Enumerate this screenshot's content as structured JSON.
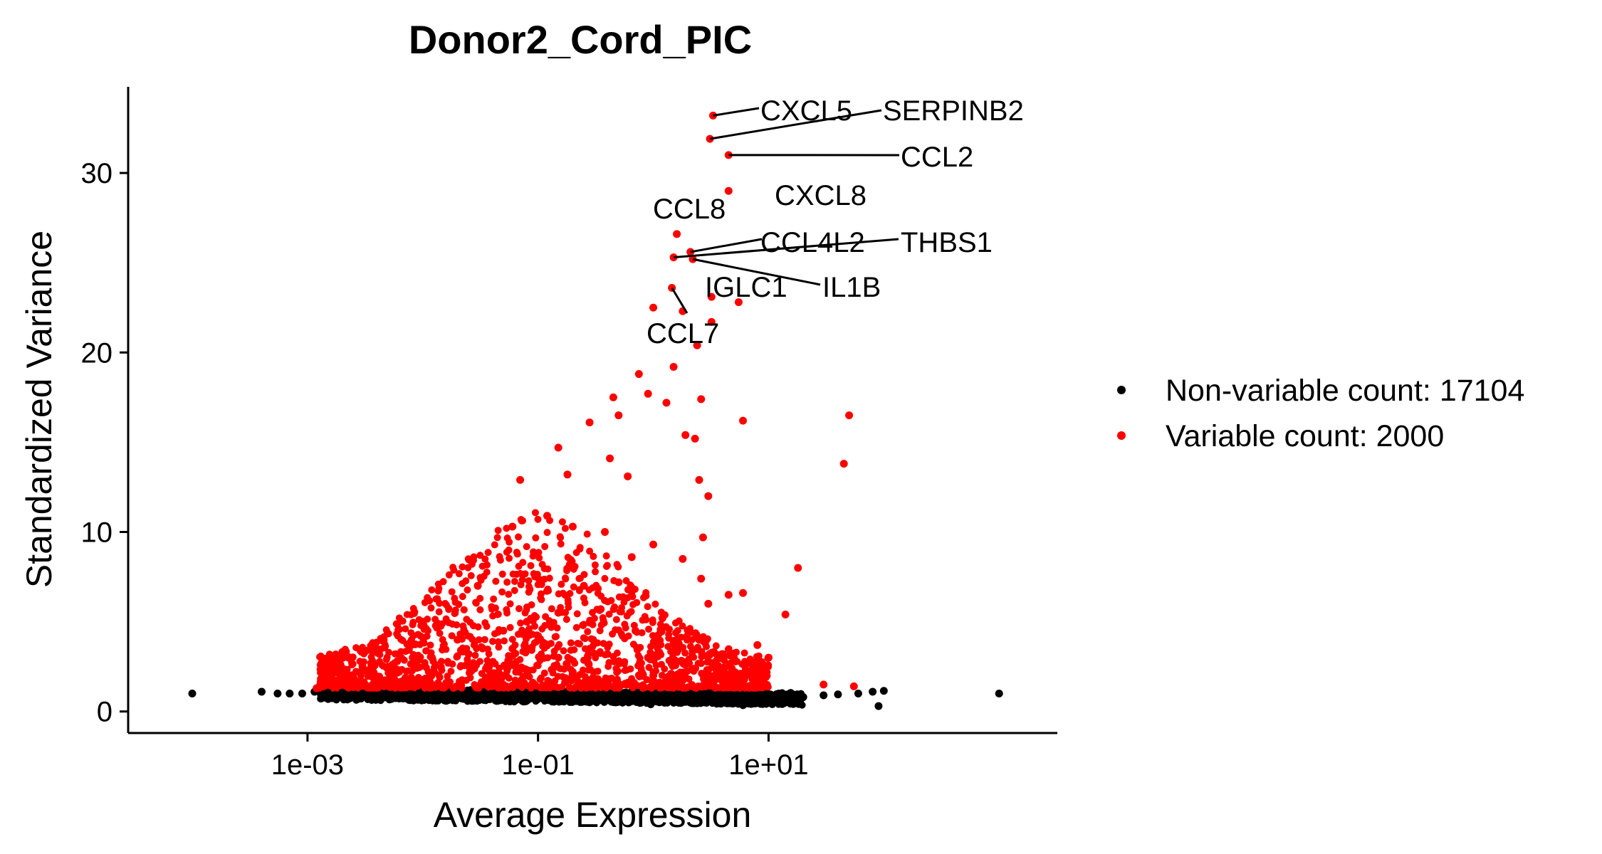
{
  "chart_data": {
    "type": "scatter",
    "title": "Donor2_Cord_PIC",
    "xlabel": "Average Expression",
    "ylabel": "Standardized Variance",
    "x_scale": "log10",
    "xlim": [
      2.78e-05,
      3200
    ],
    "ylim": [
      -1.2,
      34.8
    ],
    "x_ticks": [
      {
        "value": 0.001,
        "label": "1e-03"
      },
      {
        "value": 0.1,
        "label": "1e-01"
      },
      {
        "value": 10,
        "label": "1e+01"
      }
    ],
    "y_ticks": [
      {
        "value": 0,
        "label": "0"
      },
      {
        "value": 10,
        "label": "10"
      },
      {
        "value": 20,
        "label": "20"
      },
      {
        "value": 30,
        "label": "30"
      }
    ],
    "grid": false,
    "legend_position": "right",
    "series": [
      {
        "name": "Non-variable count: 17104",
        "color": "#000000",
        "points": [
          [
            0.0001,
            1.0
          ],
          [
            0.0004,
            1.1
          ],
          [
            0.00055,
            1.0
          ],
          [
            0.0007,
            1.0
          ],
          [
            0.0009,
            1.0
          ],
          [
            0.00115,
            1.1
          ],
          [
            0.0015,
            1.05
          ],
          [
            0.002,
            1.05
          ],
          [
            0.003,
            1.0
          ],
          [
            0.005,
            0.95
          ],
          [
            0.008,
            0.95
          ],
          [
            0.012,
            0.9
          ],
          [
            0.02,
            0.9
          ],
          [
            0.03,
            0.9
          ],
          [
            0.05,
            0.88
          ],
          [
            0.08,
            0.85
          ],
          [
            0.12,
            0.85
          ],
          [
            0.2,
            0.82
          ],
          [
            0.3,
            0.8
          ],
          [
            0.5,
            0.78
          ],
          [
            0.8,
            0.75
          ],
          [
            1.2,
            0.72
          ],
          [
            2,
            0.7
          ],
          [
            3,
            0.68
          ],
          [
            5,
            0.6
          ],
          [
            7,
            0.5
          ],
          [
            10,
            0.55
          ],
          [
            15,
            0.7
          ],
          [
            20,
            0.8
          ],
          [
            30,
            0.9
          ],
          [
            40,
            0.95
          ],
          [
            60,
            1.0
          ],
          [
            80,
            1.1
          ],
          [
            100,
            1.15
          ],
          [
            0.95,
            0.4
          ],
          [
            6,
            0.35
          ],
          [
            90,
            0.3
          ],
          [
            1000,
            1.0
          ]
        ]
      },
      {
        "name": "Variable count: 2000",
        "color": "#ff0000",
        "points": [
          [
            3.3,
            33.2
          ],
          [
            3.1,
            31.9
          ],
          [
            4.5,
            31.0
          ],
          [
            4.5,
            29.0
          ],
          [
            1.6,
            26.6
          ],
          [
            2.1,
            25.6
          ],
          [
            1.5,
            25.3
          ],
          [
            2.2,
            25.2
          ],
          [
            1.45,
            23.6
          ],
          [
            3.2,
            23.1
          ],
          [
            1.0,
            22.5
          ],
          [
            1.8,
            22.3
          ],
          [
            5.5,
            22.8
          ],
          [
            3.2,
            21.7
          ],
          [
            2.4,
            20.4
          ],
          [
            0.75,
            18.8
          ],
          [
            1.5,
            19.2
          ],
          [
            0.45,
            17.5
          ],
          [
            0.9,
            17.7
          ],
          [
            1.3,
            17.2
          ],
          [
            2.6,
            17.4
          ],
          [
            0.5,
            16.5
          ],
          [
            0.28,
            16.1
          ],
          [
            6.0,
            16.2
          ],
          [
            1.9,
            15.4
          ],
          [
            2.3,
            15.2
          ],
          [
            0.15,
            14.7
          ],
          [
            0.42,
            14.1
          ],
          [
            0.07,
            12.9
          ],
          [
            0.18,
            13.2
          ],
          [
            0.6,
            13.1
          ],
          [
            2.5,
            12.9
          ],
          [
            3.0,
            12.0
          ],
          [
            0.12,
            10.9
          ],
          [
            0.06,
            10.3
          ],
          [
            0.2,
            10.3
          ],
          [
            0.38,
            10.0
          ],
          [
            1.0,
            9.3
          ],
          [
            2.7,
            9.7
          ],
          [
            0.65,
            8.6
          ],
          [
            1.8,
            8.5
          ],
          [
            18,
            8.0
          ],
          [
            0.03,
            7.0
          ],
          [
            0.25,
            7.0
          ],
          [
            0.5,
            7.2
          ],
          [
            2.6,
            7.4
          ],
          [
            4.5,
            6.5
          ],
          [
            6.0,
            6.6
          ],
          [
            0.01,
            5.0
          ],
          [
            0.08,
            5.0
          ],
          [
            0.15,
            5.5
          ],
          [
            0.35,
            5.7
          ],
          [
            1.2,
            5.2
          ],
          [
            3.0,
            6.0
          ],
          [
            14,
            5.4
          ],
          [
            0.004,
            3.5
          ],
          [
            0.02,
            4.0
          ],
          [
            0.05,
            4.5
          ],
          [
            0.1,
            4.2
          ],
          [
            0.3,
            4.0
          ],
          [
            0.7,
            4.5
          ],
          [
            1.5,
            3.8
          ],
          [
            2.5,
            4.0
          ],
          [
            4.0,
            3.2
          ],
          [
            8.0,
            3.7
          ],
          [
            0.0015,
            2.0
          ],
          [
            0.003,
            2.5
          ],
          [
            0.006,
            2.8
          ],
          [
            0.012,
            3.0
          ],
          [
            0.025,
            3.2
          ],
          [
            0.06,
            3.5
          ],
          [
            0.15,
            3.0
          ],
          [
            0.4,
            3.2
          ],
          [
            0.9,
            3.0
          ],
          [
            2.0,
            2.8
          ],
          [
            5.0,
            3.0
          ],
          [
            10,
            3.0
          ],
          [
            0.002,
            1.5
          ],
          [
            0.008,
            1.8
          ],
          [
            0.04,
            2.0
          ],
          [
            0.2,
            2.2
          ],
          [
            1.0,
            2.0
          ],
          [
            3.5,
            1.8
          ],
          [
            7.0,
            2.2
          ],
          [
            0.0012,
            1.3
          ],
          [
            0.016,
            1.6
          ],
          [
            0.09,
            1.6
          ],
          [
            0.6,
            1.5
          ],
          [
            2.2,
            1.4
          ],
          [
            5.5,
            1.6
          ],
          [
            30,
            1.5
          ],
          [
            55,
            1.4
          ],
          [
            50,
            16.5
          ],
          [
            45,
            13.8
          ]
        ]
      }
    ],
    "labels": [
      {
        "text": "CXCL5",
        "x": 3.3,
        "y": 33.2
      },
      {
        "text": "SERPINB2",
        "x": 3.1,
        "y": 31.9
      },
      {
        "text": "CCL2",
        "x": 4.5,
        "y": 31.0
      },
      {
        "text": "CXCL8",
        "x": 4.5,
        "y": 29.0
      },
      {
        "text": "CCL8",
        "x": 1.6,
        "y": 26.6
      },
      {
        "text": "CCL4L2",
        "x": 2.1,
        "y": 25.6
      },
      {
        "text": "THBS1",
        "x": 1.5,
        "y": 25.3
      },
      {
        "text": "IL1B",
        "x": 2.2,
        "y": 25.2
      },
      {
        "text": "IGLC1",
        "x": 3.2,
        "y": 23.1
      },
      {
        "text": "CCL7",
        "x": 1.45,
        "y": 23.6
      }
    ]
  }
}
